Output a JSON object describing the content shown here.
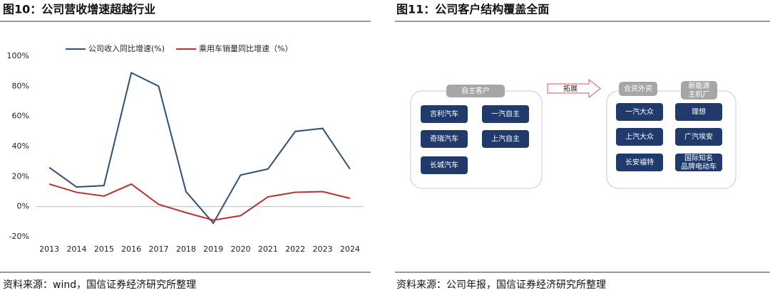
{
  "chart_data": {
    "type": "line",
    "title": "图10：公司营收增速超越行业",
    "categories": [
      "2013",
      "2014",
      "2015",
      "2016",
      "2017",
      "2018",
      "2019",
      "2020",
      "2021",
      "2022",
      "2023",
      "2024"
    ],
    "series": [
      {
        "name": "公司收入同比增速(%)",
        "color": "#2f4f75",
        "values": [
          26,
          13,
          14,
          89,
          80,
          10,
          -11,
          21,
          25,
          50,
          52,
          25
        ]
      },
      {
        "name": "乘用车销量同比增速（%）",
        "color": "#b83232",
        "values": [
          15,
          9.5,
          7,
          15,
          1.5,
          -4,
          -9,
          -6,
          6.5,
          9.5,
          10,
          5.5
        ]
      }
    ],
    "ylim": [
      -20,
      100
    ],
    "yticks": [
      {
        "value": -20,
        "label": "-20%"
      },
      {
        "value": 0,
        "label": "0%"
      },
      {
        "value": 20,
        "label": "20%"
      },
      {
        "value": 40,
        "label": "40%"
      },
      {
        "value": 60,
        "label": "60%"
      },
      {
        "value": 80,
        "label": "80%"
      },
      {
        "value": 100,
        "label": "100%"
      }
    ],
    "grid": false,
    "legend": "top",
    "source": "资料来源：wind，国信证券经济研究所整理"
  },
  "diagram": {
    "title": "图11：公司客户结构覆盖全面",
    "arrow_label": "拓展",
    "groups": [
      {
        "label": [
          "自主客户"
        ],
        "nodes": [
          [
            "吉利汽车"
          ],
          [
            "一汽自主"
          ],
          [
            "奇瑞汽车"
          ],
          [
            "上汽自主"
          ],
          [
            "长城汽车"
          ]
        ]
      },
      {
        "label": [
          "合资外资"
        ],
        "nodes": [
          [
            "一汽大众"
          ],
          [
            "上汽大众"
          ],
          [
            "长安福特"
          ]
        ]
      },
      {
        "label": [
          "新能源",
          "主机厂"
        ],
        "nodes": [
          [
            "理想"
          ],
          [
            "广汽埃安"
          ],
          [
            "国际知名",
            "品牌电动车"
          ]
        ]
      }
    ],
    "source": "资料来源：公司年报，国信证券经济研究所整理"
  }
}
